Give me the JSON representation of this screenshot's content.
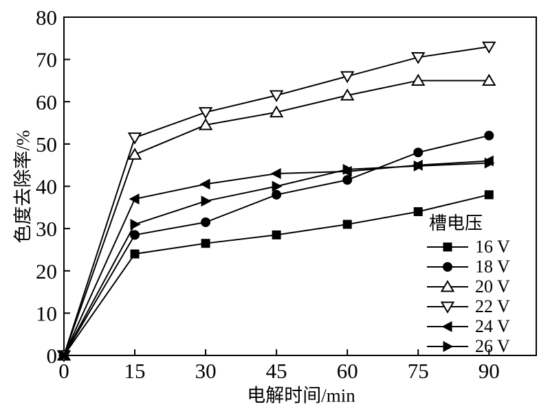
{
  "chart_data": {
    "type": "line",
    "title": "",
    "xlabel": "电解时间/min",
    "ylabel": "色度去除率/%",
    "xlim": [
      0,
      100
    ],
    "ylim": [
      0,
      80
    ],
    "x_ticks": [
      0,
      15,
      30,
      45,
      60,
      75,
      90
    ],
    "y_ticks": [
      0,
      10,
      20,
      30,
      40,
      50,
      60,
      70,
      80
    ],
    "grid": false,
    "background_color": "#ffffff",
    "line_color": "#000000",
    "marker_open_fill": "#ffffff",
    "legend": {
      "title": "槽电压",
      "position": "inside-lower-right"
    },
    "x": [
      0,
      15,
      30,
      45,
      60,
      75,
      90
    ],
    "series": [
      {
        "name": "16 V",
        "marker": "square-filled",
        "values": [
          0,
          24,
          26.5,
          28.5,
          31,
          34,
          38
        ]
      },
      {
        "name": "18 V",
        "marker": "circle-filled",
        "values": [
          0,
          28.5,
          31.5,
          38,
          41.5,
          48,
          52
        ]
      },
      {
        "name": "20 V",
        "marker": "triangle-up-open",
        "values": [
          0,
          47.5,
          54.5,
          57.5,
          61.5,
          65,
          65
        ]
      },
      {
        "name": "22 V",
        "marker": "triangle-down-open",
        "values": [
          0,
          51.5,
          57.5,
          61.5,
          66,
          70.5,
          73
        ]
      },
      {
        "name": "24 V",
        "marker": "triangle-left-filled",
        "values": [
          0,
          37,
          40.5,
          43,
          43.5,
          45,
          46
        ]
      },
      {
        "name": "26 V",
        "marker": "triangle-right-filled",
        "values": [
          0,
          31,
          36.5,
          40,
          44,
          44.8,
          45.5
        ]
      }
    ]
  }
}
